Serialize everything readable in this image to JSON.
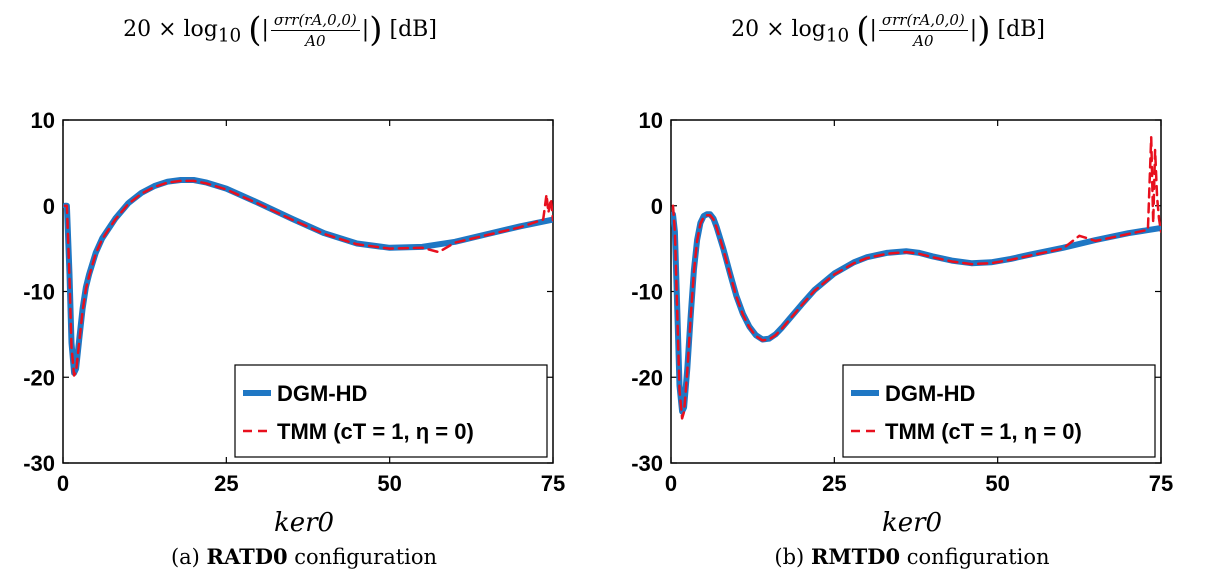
{
  "panels": [
    {
      "title_prefix": "20 × log",
      "title_sub": "10",
      "title_num": "σrr(rA,0,0)",
      "title_den": "A0",
      "title_unit": "[dB]",
      "xlabel": "ker0",
      "caption_tag": "(a)",
      "caption_config": "RATD0",
      "caption_rest": "configuration"
    },
    {
      "title_prefix": "20 × log",
      "title_sub": "10",
      "title_num": "σrr(rA,0,0)",
      "title_den": "A0",
      "title_unit": "[dB]",
      "xlabel": "ker0",
      "caption_tag": "(b)",
      "caption_config": "RMTD0",
      "caption_rest": "configuration"
    }
  ],
  "chart_data": [
    {
      "type": "line",
      "xlim": [
        0,
        75
      ],
      "ylim": [
        -30,
        10
      ],
      "xticks": [
        "0",
        "25",
        "50",
        "75"
      ],
      "yticks": [
        "10",
        "0",
        "-10",
        "-20",
        "-30"
      ],
      "grid": false,
      "legend_position": "bottom-right",
      "series": [
        {
          "name": "DGM-HD",
          "color": "#1f77c4",
          "style": "solid",
          "x": [
            0.3,
            0.6,
            1.0,
            1.3,
            1.7,
            2.0,
            2.5,
            3.0,
            3.5,
            4.0,
            5.0,
            6.0,
            8.0,
            10.0,
            12.0,
            14.0,
            16.0,
            18.0,
            20.0,
            22.0,
            25.0,
            30.0,
            35.0,
            40.0,
            45.0,
            50.0,
            55.0,
            60.0,
            65.0,
            70.0,
            75.0
          ],
          "y": [
            0.0,
            0.0,
            -8.0,
            -16.0,
            -19.5,
            -19.0,
            -15.5,
            -12.0,
            -9.5,
            -8.0,
            -5.5,
            -3.8,
            -1.5,
            0.3,
            1.5,
            2.3,
            2.8,
            3.0,
            3.0,
            2.7,
            2.0,
            0.3,
            -1.5,
            -3.2,
            -4.4,
            -4.9,
            -4.8,
            -4.2,
            -3.3,
            -2.4,
            -1.6
          ]
        },
        {
          "name": "TMM (cT = 1, η = 0)",
          "color": "#e8101e",
          "style": "dashed",
          "x": [
            0.3,
            0.6,
            1.0,
            1.3,
            1.7,
            2.0,
            2.5,
            3.0,
            3.5,
            4.0,
            5.0,
            6.0,
            8.0,
            10.0,
            12.0,
            14.0,
            16.0,
            18.0,
            20.0,
            22.0,
            25.0,
            30.0,
            35.0,
            40.0,
            45.0,
            50.0,
            55.0,
            57.5,
            60.0,
            65.0,
            70.0,
            73.5,
            74.0,
            74.3,
            74.7,
            75.0
          ],
          "y": [
            0.0,
            0.0,
            -8.5,
            -16.5,
            -19.8,
            -19.3,
            -15.8,
            -12.3,
            -9.7,
            -8.2,
            -5.6,
            -3.9,
            -1.6,
            0.2,
            1.4,
            2.2,
            2.7,
            2.9,
            2.9,
            2.6,
            1.9,
            0.2,
            -1.6,
            -3.3,
            -4.5,
            -5.0,
            -4.9,
            -5.4,
            -4.3,
            -3.4,
            -2.5,
            -1.6,
            1.3,
            -0.8,
            0.8,
            -1.7
          ]
        }
      ]
    },
    {
      "type": "line",
      "xlim": [
        0,
        75
      ],
      "ylim": [
        -30,
        10
      ],
      "xticks": [
        "0",
        "25",
        "50",
        "75"
      ],
      "yticks": [
        "10",
        "0",
        "-10",
        "-20",
        "-30"
      ],
      "grid": false,
      "legend_position": "bottom-right",
      "series": [
        {
          "name": "DGM-HD",
          "color": "#1f77c4",
          "style": "solid",
          "x": [
            0.3,
            0.6,
            1.0,
            1.3,
            1.7,
            2.0,
            2.5,
            3.0,
            3.5,
            4.0,
            4.5,
            5.0,
            5.5,
            6.0,
            6.5,
            7.0,
            8.0,
            9.0,
            10.0,
            11.0,
            12.0,
            13.0,
            14.0,
            15.0,
            16.0,
            17.0,
            18.0,
            20.0,
            22.0,
            25.0,
            28.0,
            30.0,
            33.0,
            36.0,
            38.0,
            40.0,
            43.0,
            46.0,
            49.0,
            52.0,
            55.0,
            60.0,
            65.0,
            70.0,
            75.0
          ],
          "y": [
            -1.0,
            -3.0,
            -13.0,
            -21.0,
            -24.0,
            -23.5,
            -19.0,
            -13.0,
            -7.5,
            -4.0,
            -2.0,
            -1.2,
            -1.0,
            -1.0,
            -1.5,
            -2.5,
            -5.0,
            -7.8,
            -10.5,
            -12.6,
            -14.1,
            -15.1,
            -15.6,
            -15.5,
            -15.0,
            -14.2,
            -13.3,
            -11.5,
            -9.8,
            -7.9,
            -6.6,
            -6.0,
            -5.5,
            -5.3,
            -5.5,
            -5.9,
            -6.4,
            -6.7,
            -6.6,
            -6.2,
            -5.7,
            -4.9,
            -4.0,
            -3.2,
            -2.6
          ]
        },
        {
          "name": "TMM (cT = 1, η = 0)",
          "color": "#e8101e",
          "style": "dashed",
          "x": [
            0.3,
            0.6,
            1.0,
            1.3,
            1.7,
            2.0,
            2.5,
            3.0,
            3.5,
            4.0,
            4.5,
            5.0,
            5.5,
            6.0,
            6.5,
            7.0,
            8.0,
            9.0,
            10.0,
            11.0,
            12.0,
            13.0,
            14.0,
            15.0,
            16.0,
            17.0,
            18.0,
            20.0,
            22.0,
            25.0,
            28.0,
            30.0,
            33.0,
            36.0,
            38.0,
            40.0,
            43.0,
            46.0,
            49.0,
            52.0,
            55.0,
            60.0,
            62.5,
            65.0,
            70.0,
            73.0,
            73.5,
            73.8,
            74.1,
            74.4,
            74.7,
            75.0
          ],
          "y": [
            0.0,
            -3.0,
            -13.5,
            -21.5,
            -24.8,
            -24.0,
            -19.3,
            -13.2,
            -7.7,
            -4.1,
            -2.1,
            -1.3,
            -1.1,
            -1.1,
            -1.6,
            -2.6,
            -5.1,
            -7.9,
            -10.6,
            -12.7,
            -14.2,
            -15.2,
            -15.7,
            -15.6,
            -15.1,
            -14.3,
            -13.4,
            -11.6,
            -9.9,
            -8.0,
            -6.7,
            -6.1,
            -5.6,
            -5.4,
            -5.6,
            -6.0,
            -6.5,
            -6.8,
            -6.7,
            -6.3,
            -5.8,
            -5.0,
            -3.5,
            -4.1,
            -3.3,
            -2.8,
            8.0,
            -2.0,
            6.5,
            1.0,
            -1.5,
            -3.0
          ]
        }
      ]
    }
  ]
}
